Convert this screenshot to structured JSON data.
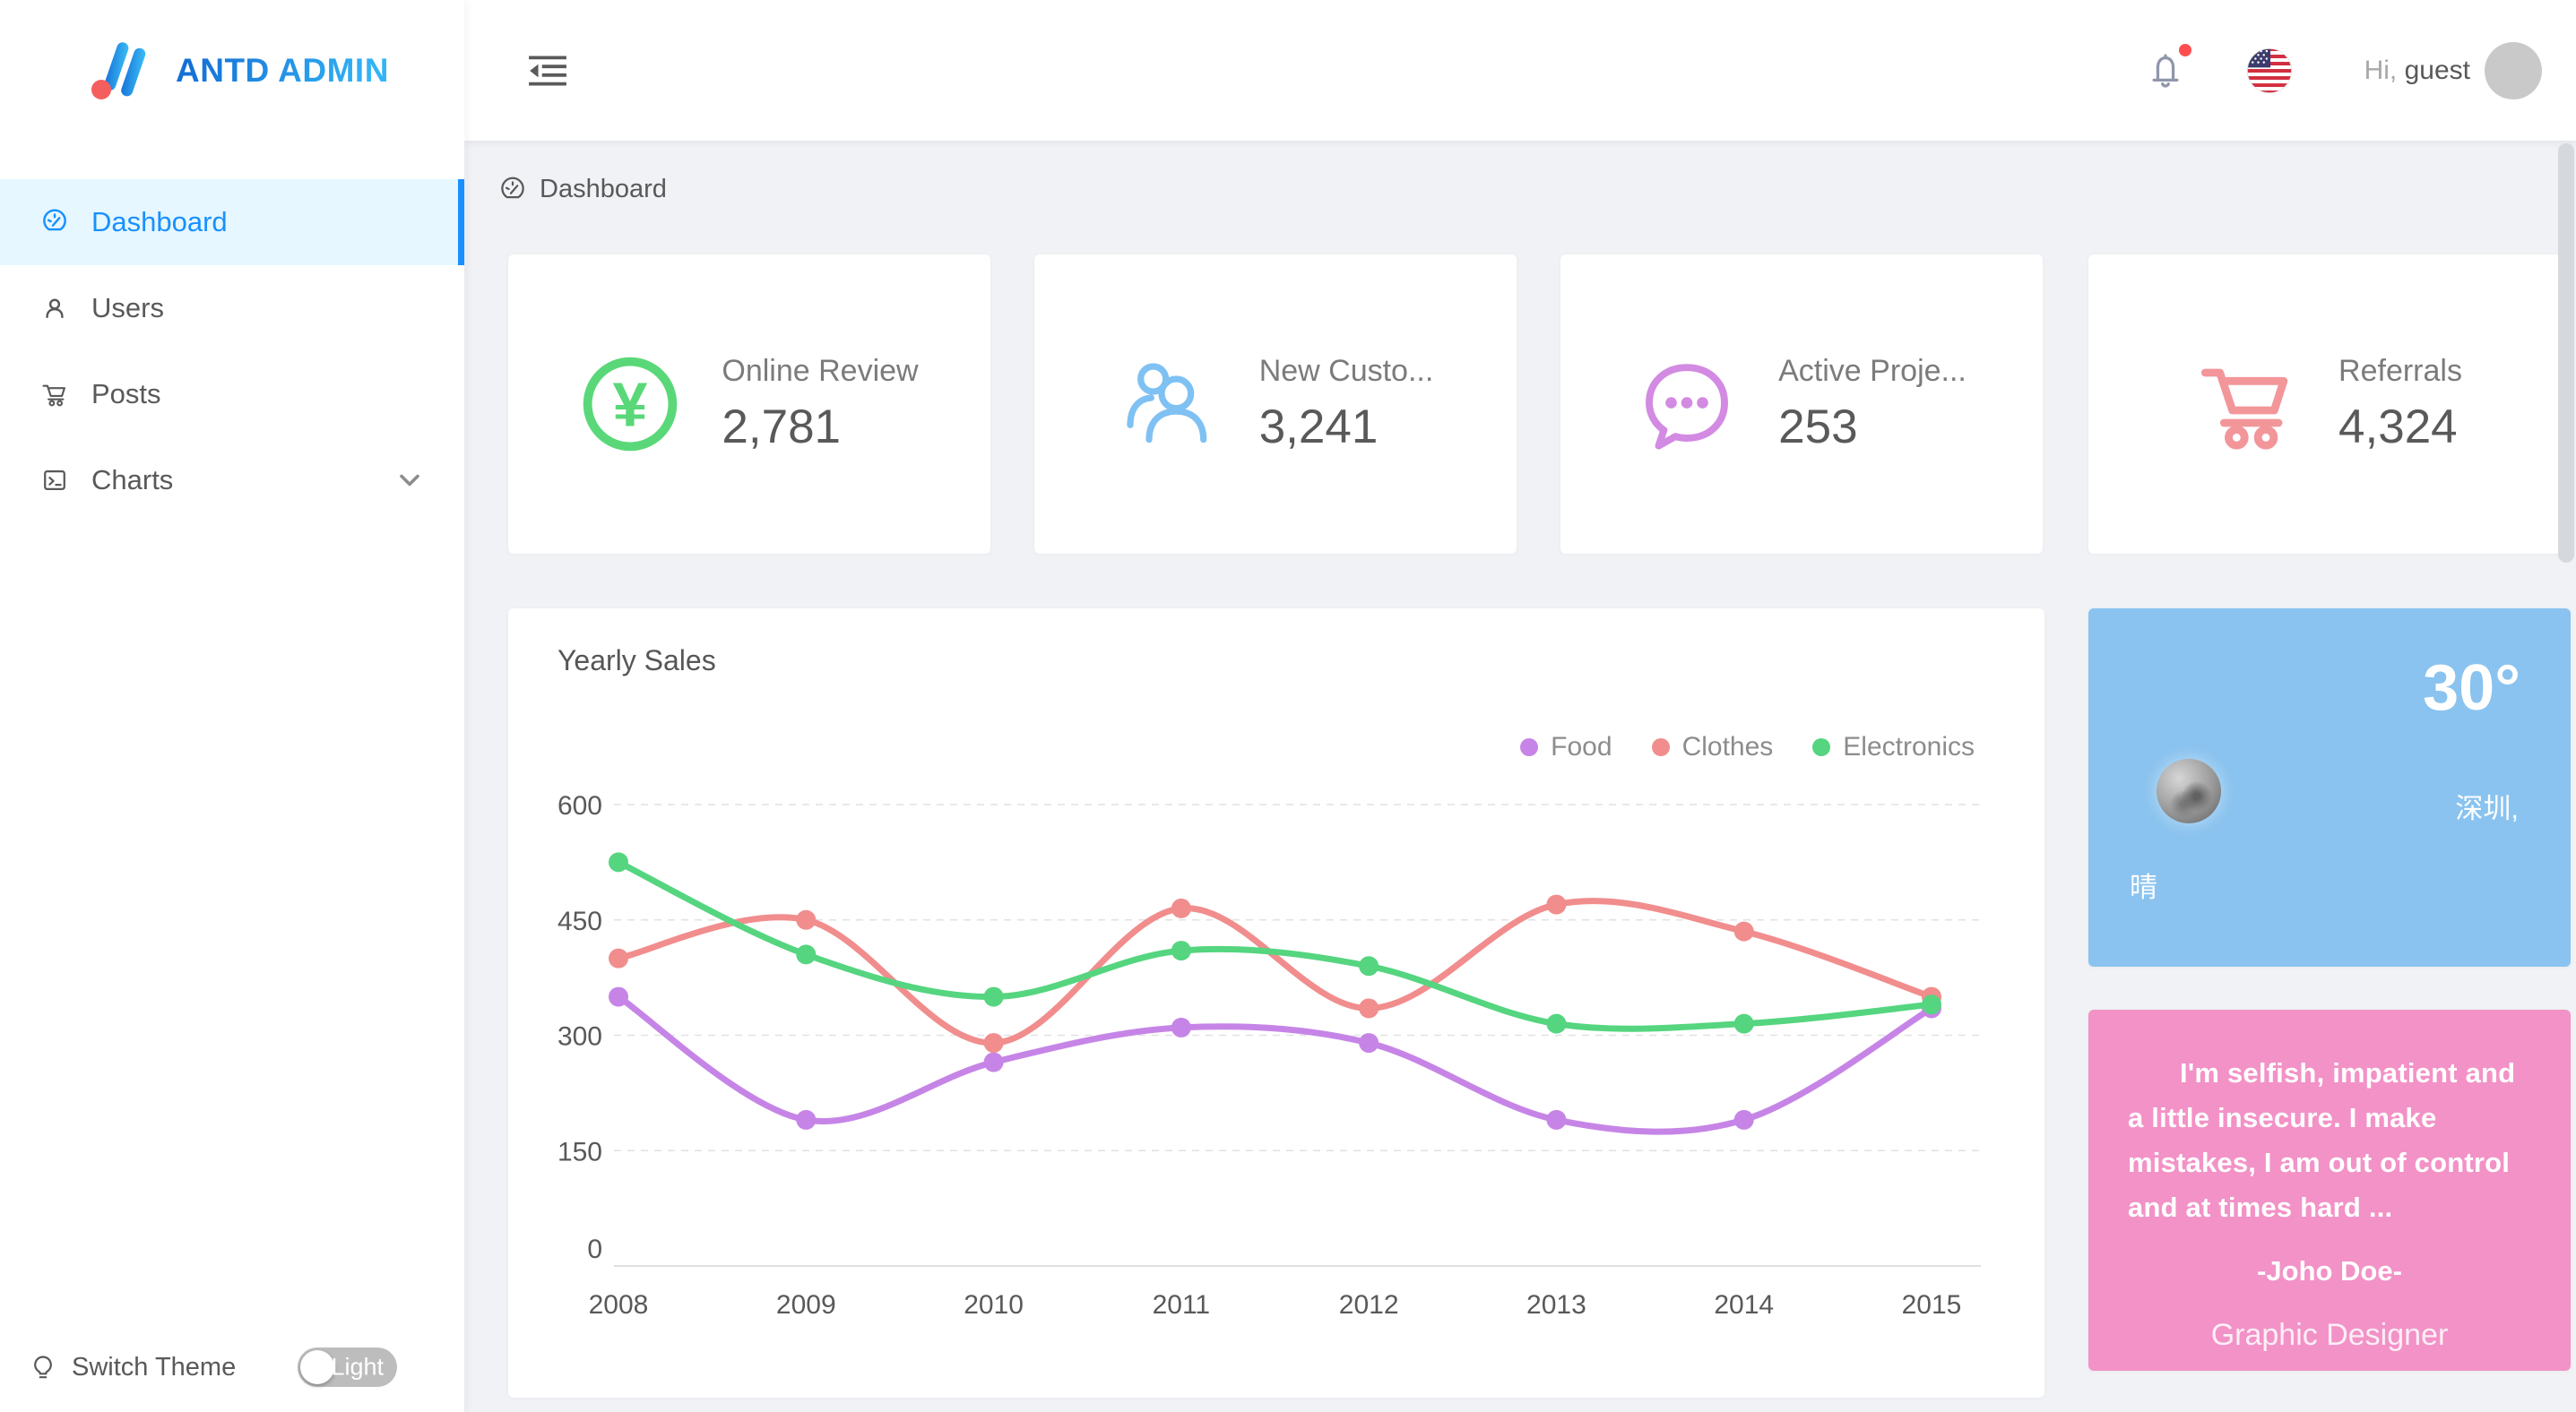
{
  "brand": {
    "name": "ANTD ADMIN",
    "accent_blue": "#1890ff",
    "logo_red": "#f55e5e"
  },
  "header": {
    "greeting_prefix": "Hi,",
    "username": "guest"
  },
  "sidebar": {
    "items": [
      {
        "label": "Dashboard",
        "icon": "dashboard-icon",
        "active": true
      },
      {
        "label": "Users",
        "icon": "user-icon",
        "active": false
      },
      {
        "label": "Posts",
        "icon": "cart-icon",
        "active": false
      },
      {
        "label": "Charts",
        "icon": "code-icon",
        "active": false,
        "has_submenu": true
      }
    ],
    "theme": {
      "label": "Switch Theme",
      "toggle_label": "Light",
      "icon": "bulb-icon"
    }
  },
  "breadcrumb": {
    "label": "Dashboard",
    "icon": "dashboard-icon"
  },
  "stat_cards": [
    {
      "title": "Online Review",
      "value": "2,781",
      "icon": "yen-circle-icon",
      "color": "#5ad879"
    },
    {
      "title": "New Custo...",
      "value": "3,241",
      "icon": "team-icon",
      "color": "#7fc1f3"
    },
    {
      "title": "Active Proje...",
      "value": "253",
      "icon": "message-icon",
      "color": "#d38ae2"
    },
    {
      "title": "Referrals",
      "value": "4,324",
      "icon": "cart-icon",
      "color": "#f2969a"
    }
  ],
  "chart_data": {
    "type": "line",
    "title": "Yearly Sales",
    "categories": [
      "2008",
      "2009",
      "2010",
      "2011",
      "2012",
      "2013",
      "2014",
      "2015"
    ],
    "series": [
      {
        "name": "Food",
        "color": "#c685e6",
        "values": [
          350,
          190,
          265,
          310,
          290,
          190,
          190,
          335
        ]
      },
      {
        "name": "Clothes",
        "color": "#f18d8d",
        "values": [
          400,
          450,
          290,
          465,
          335,
          470,
          435,
          350
        ]
      },
      {
        "name": "Electronics",
        "color": "#55d57f",
        "values": [
          525,
          405,
          350,
          410,
          390,
          315,
          315,
          340
        ]
      }
    ],
    "ylim": [
      0,
      600
    ],
    "yticks": [
      0,
      150,
      300,
      450,
      600
    ],
    "grid": "dashed-horizontal",
    "legend_position": "top-right",
    "smooth": true
  },
  "weather": {
    "temperature": "30°",
    "city": "深圳,",
    "condition": "晴",
    "bg": "#8ac3ef"
  },
  "quote": {
    "text": "I'm selfish, impatient and a little insecure. I make mistakes, I am out of control and at times hard ...",
    "author": "-Joho Doe-",
    "role": "Graphic Designer",
    "bg": "#f292c7"
  }
}
